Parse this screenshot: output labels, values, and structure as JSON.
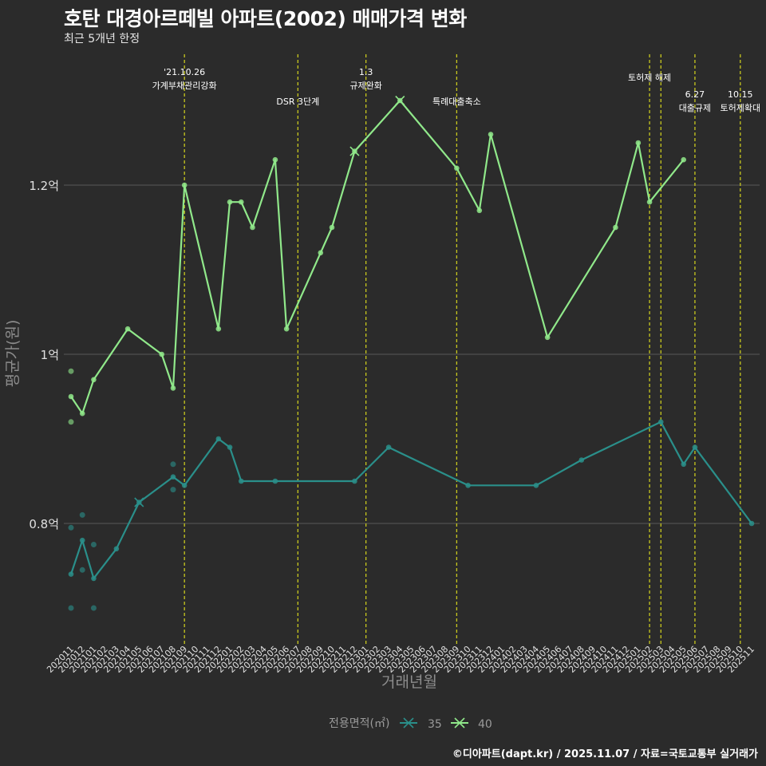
{
  "header": {
    "title": "호탄 대경아르떼빌 아파트(2002) 매매가격 변화",
    "subtitle": "최근 5개년 한정"
  },
  "footer": {
    "caption": "©디아파트(dapt.kr) / 2025.11.07 / 자료=국토교통부 실거래가"
  },
  "colors": {
    "background": "#2b2b2b",
    "grid": "#5a5a5a",
    "event_line": "#c8c81e",
    "series_35": "#2a8f8a",
    "series_40": "#90e88a"
  },
  "chart_data": {
    "type": "line",
    "title": "호탄 대경아르떼빌 아파트(2002) 매매가격 변화",
    "subtitle": "최근 5개년 한정",
    "xlabel": "거래년월",
    "ylabel": "평균가(원)",
    "ylim": [
      0.67,
      1.3
    ],
    "y_unit": "억",
    "yticks": [
      {
        "value": 0.8,
        "label": "0.8억"
      },
      {
        "value": 1.0,
        "label": "1억"
      },
      {
        "value": 1.2,
        "label": "1.2억"
      }
    ],
    "x_labels": [
      "202011",
      "202012",
      "202101",
      "202102",
      "202103",
      "202104",
      "202105",
      "202106",
      "202107",
      "202108",
      "202109",
      "202110",
      "202111",
      "202112",
      "202201",
      "202202",
      "202203",
      "202204",
      "202205",
      "202206",
      "202207",
      "202208",
      "202209",
      "202210",
      "202211",
      "202212",
      "202301",
      "202302",
      "202303",
      "202304",
      "202305",
      "202306",
      "202307",
      "202308",
      "202309",
      "202310",
      "202311",
      "202312",
      "202401",
      "202402",
      "202403",
      "202404",
      "202405",
      "202406",
      "202407",
      "202408",
      "202409",
      "202410",
      "202411",
      "202412",
      "202501",
      "202502",
      "202503",
      "202504",
      "202505",
      "202506",
      "202507",
      "202508",
      "202509",
      "202510",
      "202511"
    ],
    "legend_title": "전용면적(㎡)",
    "legend_position": "bottom",
    "series": [
      {
        "name": "35",
        "line": [
          [
            "202011",
            0.74
          ],
          [
            "202012",
            0.78
          ],
          [
            "202101",
            0.735
          ],
          [
            "202103",
            0.77
          ],
          [
            "202105",
            0.825
          ],
          [
            "202108",
            0.855
          ],
          [
            "202109",
            0.845
          ],
          [
            "202112",
            0.9
          ],
          [
            "202201",
            0.89
          ],
          [
            "202202",
            0.85
          ],
          [
            "202205",
            0.85
          ],
          [
            "202212",
            0.85
          ],
          [
            "202303",
            0.89
          ],
          [
            "202310",
            0.845
          ],
          [
            "202404",
            0.845
          ],
          [
            "202408",
            0.875
          ],
          [
            "202503",
            0.92
          ],
          [
            "202505",
            0.87
          ],
          [
            "202506",
            0.89
          ],
          [
            "202511",
            0.8
          ]
        ],
        "points": [
          [
            "202011",
            0.795
          ],
          [
            "202011",
            0.7
          ],
          [
            "202012",
            0.81
          ],
          [
            "202012",
            0.745
          ],
          [
            "202101",
            0.775
          ],
          [
            "202101",
            0.7
          ],
          [
            "202108",
            0.87
          ],
          [
            "202108",
            0.84
          ]
        ],
        "cross": [
          [
            "202105",
            0.825
          ]
        ]
      },
      {
        "name": "40",
        "line": [
          [
            "202011",
            0.95
          ],
          [
            "202012",
            0.93
          ],
          [
            "202101",
            0.97
          ],
          [
            "202104",
            1.03
          ],
          [
            "202107",
            1.0
          ],
          [
            "202108",
            0.96
          ],
          [
            "202109",
            1.2
          ],
          [
            "202112",
            1.03
          ],
          [
            "202201",
            1.18
          ],
          [
            "202202",
            1.18
          ],
          [
            "202203",
            1.15
          ],
          [
            "202205",
            1.23
          ],
          [
            "202206",
            1.03
          ],
          [
            "202209",
            1.12
          ],
          [
            "202210",
            1.15
          ],
          [
            "202212",
            1.24
          ],
          [
            "202304",
            1.3
          ],
          [
            "202309",
            1.22
          ],
          [
            "202311",
            1.17
          ],
          [
            "202312",
            1.26
          ],
          [
            "202405",
            1.02
          ],
          [
            "202411",
            1.15
          ],
          [
            "202501",
            1.25
          ],
          [
            "202502",
            1.18
          ],
          [
            "202505",
            1.23
          ]
        ],
        "points": [
          [
            "202011",
            0.98
          ],
          [
            "202011",
            0.92
          ]
        ],
        "cross": [
          [
            "202212",
            1.24
          ],
          [
            "202304",
            1.3
          ]
        ]
      }
    ],
    "events": [
      {
        "x": "202109",
        "label_lines": [
          "'21.10.26",
          "가계부채관리강화"
        ],
        "row": 1
      },
      {
        "x": "202207",
        "label_lines": [
          "DSR 3단계"
        ],
        "row": 2
      },
      {
        "x": "202301",
        "label_lines": [
          "1.3",
          "규제완화"
        ],
        "row": 1
      },
      {
        "x": "202309",
        "label_lines": [
          "특례대출축소"
        ],
        "row": 2
      },
      {
        "x": "202502",
        "label_lines": [
          "토허제 해제"
        ],
        "row": 1
      },
      {
        "x": "202503",
        "label_lines": [],
        "row": 1
      },
      {
        "x": "202506",
        "label_lines": [
          "6.27",
          "대출규제"
        ],
        "row": 2
      },
      {
        "x": "202510",
        "label_lines": [
          "10.15",
          "토허제확대"
        ],
        "row": 2
      }
    ]
  }
}
